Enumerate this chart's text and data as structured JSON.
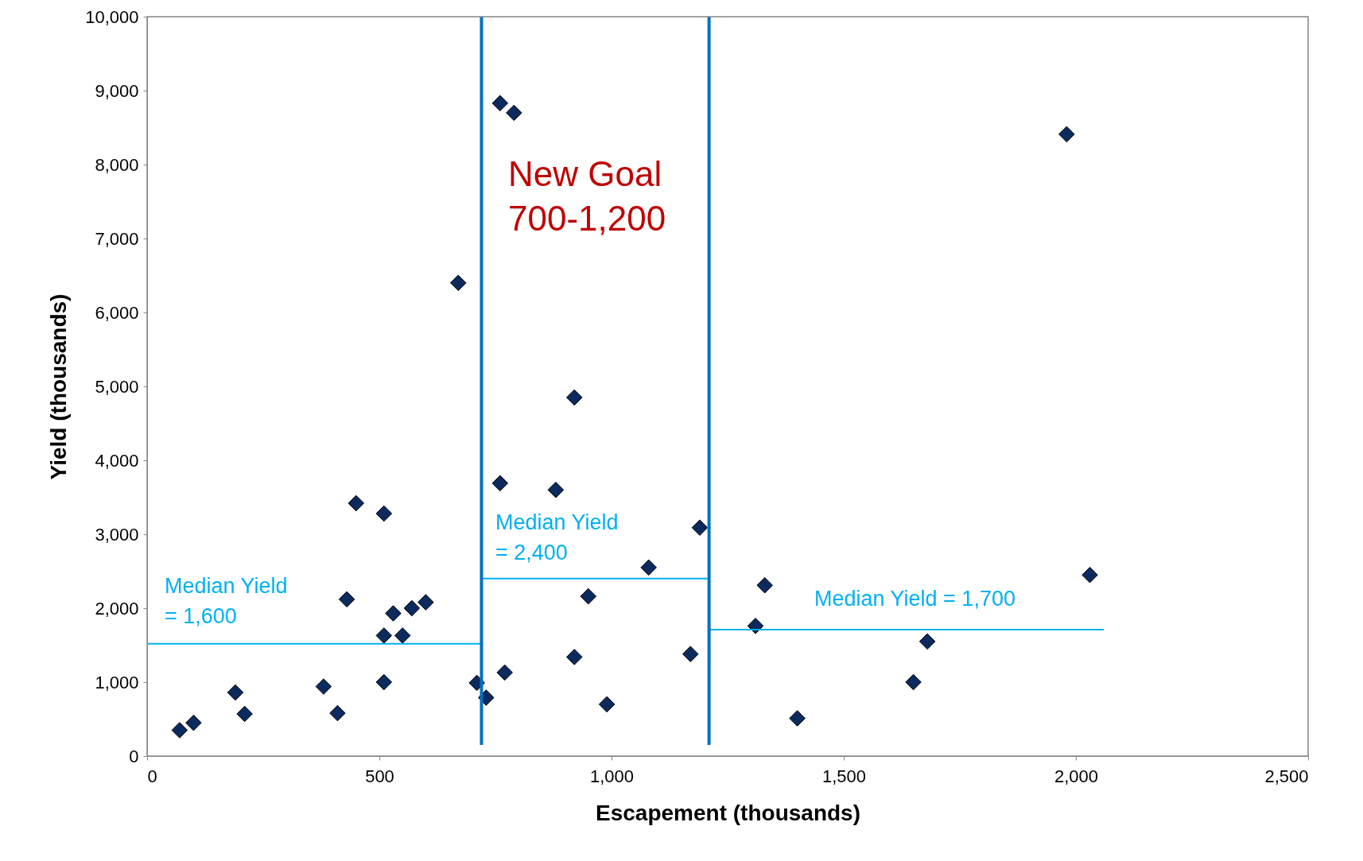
{
  "chart_data": {
    "type": "scatter",
    "xlabel": "Escapement (thousands)",
    "ylabel": "Yield (thousands)",
    "xlim": [
      0,
      2500
    ],
    "xticks": [
      0,
      {
        "value": 500,
        "label": "500"
      },
      {
        "value": 1000,
        "label": "1,000"
      },
      {
        "value": 1500,
        "label": "1,500"
      },
      {
        "value": 2000,
        "label": "2,000"
      },
      {
        "value": 2500,
        "label": "2,500"
      }
    ],
    "ylim": [
      0,
      10000
    ],
    "yticks": [
      0,
      {
        "value": 1000,
        "label": "1,000"
      },
      {
        "value": 2000,
        "label": "2,000"
      },
      {
        "value": 3000,
        "label": "3,000"
      },
      {
        "value": 4000,
        "label": "4,000"
      },
      {
        "value": 5000,
        "label": "5,000"
      },
      {
        "value": 6000,
        "label": "6,000"
      },
      {
        "value": 7000,
        "label": "7,000"
      },
      {
        "value": 8000,
        "label": "8,000"
      },
      {
        "value": 9000,
        "label": "9,000"
      },
      {
        "value": 10000,
        "label": "10,000"
      }
    ],
    "grid": false,
    "series": [
      {
        "color": "#0d2a5e",
        "marker": "diamond",
        "x": [
          70,
          100,
          190,
          210,
          380,
          410,
          430,
          450,
          510,
          510,
          510,
          530,
          550,
          570,
          600,
          670,
          710,
          730,
          760,
          760,
          770,
          790,
          880,
          920,
          920,
          950,
          990,
          1080,
          1170,
          1190,
          1310,
          1330,
          1400,
          1650,
          1680,
          1980,
          2030
        ],
        "values": [
          350,
          450,
          860,
          570,
          940,
          580,
          2120,
          3420,
          1630,
          1000,
          3280,
          1930,
          1630,
          2000,
          2080,
          6400,
          990,
          790,
          8830,
          3690,
          1130,
          8700,
          3600,
          1340,
          4850,
          2160,
          700,
          2550,
          1380,
          3090,
          1760,
          2310,
          510,
          1000,
          1550,
          8410,
          2450
        ]
      },
      {
        "type": "line",
        "color": "#00b0f0",
        "marker": "none",
        "x": [
          0,
          720
        ],
        "values": [
          1520,
          1520
        ]
      },
      {
        "type": "line",
        "color": "#00b0f0",
        "marker": "none",
        "x": [
          720,
          1210
        ],
        "values": [
          2400,
          2400
        ]
      },
      {
        "type": "line",
        "color": "#00b0f0",
        "marker": "none",
        "x": [
          1210,
          2060
        ],
        "values": [
          1710,
          1710
        ]
      }
    ],
    "ref_lines": [
      {
        "axis": "x",
        "value": 720,
        "color": "#0070c0"
      },
      {
        "axis": "x",
        "value": 1210,
        "color": "#0070c0"
      }
    ],
    "annotations": [
      "New Goal\n700-1,200",
      "Median Yield\n= 1,600",
      "Median Yield\n= 2,400",
      "Median Yield = 1,700"
    ]
  }
}
